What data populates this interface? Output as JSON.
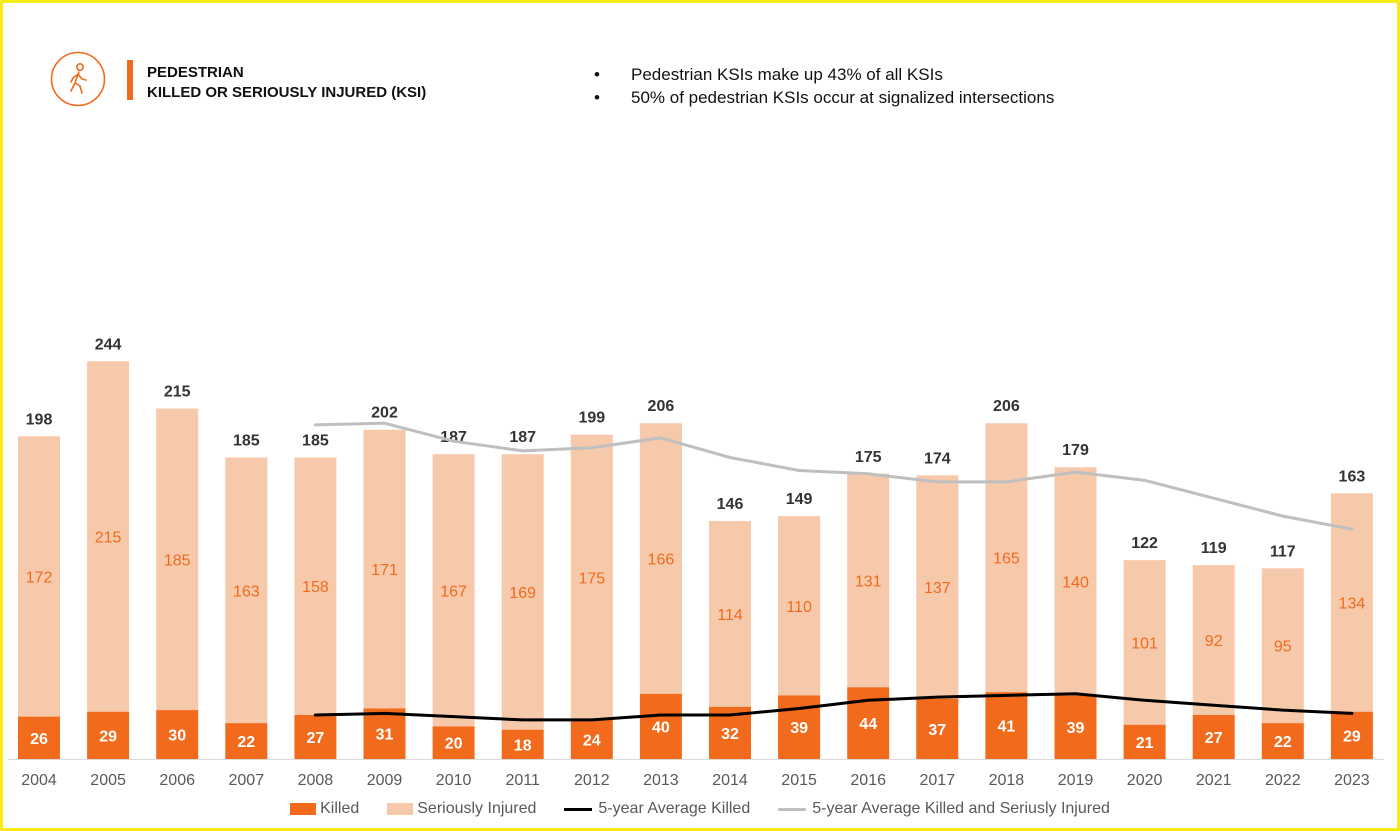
{
  "header": {
    "title_line1": "PEDESTRIAN",
    "title_line2": "KILLED OR SERIOUSLY INJURED (KSI)",
    "icon": "pedestrian-walking-icon",
    "bullets": [
      "Pedestrian KSIs make up 43% of all KSIs",
      "50% of pedestrian KSIs occur at signalized intersections"
    ]
  },
  "colors": {
    "killed": "#f26a1b",
    "seriously_injured": "#f7c9ab",
    "avg_killed": "#000000",
    "avg_ksi": "#bfbfbf",
    "frame": "#f6ea17"
  },
  "chart_data": {
    "type": "bar",
    "stacked": true,
    "categories": [
      "2004",
      "2005",
      "2006",
      "2007",
      "2008",
      "2009",
      "2010",
      "2011",
      "2012",
      "2013",
      "2014",
      "2015",
      "2016",
      "2017",
      "2018",
      "2019",
      "2020",
      "2021",
      "2022",
      "2023"
    ],
    "series": [
      {
        "name": "Killed",
        "values": [
          26,
          29,
          30,
          22,
          27,
          31,
          20,
          18,
          24,
          40,
          32,
          39,
          44,
          37,
          41,
          39,
          21,
          27,
          22,
          29
        ]
      },
      {
        "name": "Seriously Injured",
        "values": [
          172,
          215,
          185,
          163,
          158,
          171,
          167,
          169,
          175,
          166,
          114,
          110,
          131,
          137,
          165,
          140,
          101,
          92,
          95,
          134
        ]
      }
    ],
    "totals": [
      198,
      244,
      215,
      185,
      185,
      202,
      187,
      187,
      199,
      206,
      146,
      149,
      175,
      174,
      206,
      179,
      122,
      119,
      117,
      163
    ],
    "lines": [
      {
        "name": "5-year Average Killed",
        "values": [
          null,
          null,
          null,
          null,
          27,
          28,
          26,
          24,
          24,
          27,
          27,
          31,
          36,
          38,
          39,
          40,
          36,
          33,
          30,
          28
        ]
      },
      {
        "name": "5-year Average Killed and Seriusly Injured",
        "values": [
          null,
          null,
          null,
          null,
          205,
          206,
          195,
          189,
          191,
          197,
          185,
          177,
          175,
          170,
          170,
          176,
          171,
          160,
          149,
          141
        ]
      }
    ],
    "ylim": [
      0,
      260
    ],
    "legend_position": "bottom",
    "grid": false
  }
}
